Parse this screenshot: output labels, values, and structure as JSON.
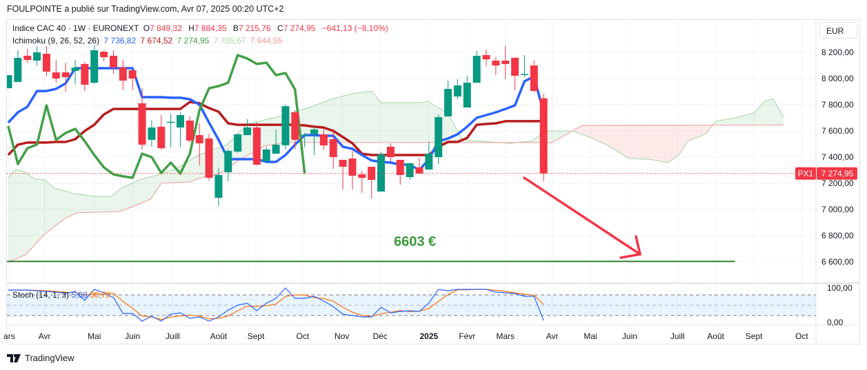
{
  "publisher": "FOULPOINTE a publié sur TradingView.com, Avr 07, 2025 00:20 UTC+2",
  "legend": {
    "symbol": "Indice CAC 40 · 1W · EURONEXT",
    "o_label": "O",
    "o": "7 849,32",
    "h_label": "H",
    "h": "7 884,35",
    "b_label": "B",
    "b": "7 215,76",
    "c_label": "C",
    "c": "7 274,95",
    "change": "−641,13 (−8,10%)",
    "ichimoku": "Ichimoku (9, 26, 52, 26)",
    "tenkan": "7 736,82",
    "kijun": "7 674,52",
    "chikou": "7 274,95",
    "span_a": "7 705,67",
    "span_b": "7 644,55"
  },
  "stoch_legend": {
    "name": "Stoch (14, 1, 3)",
    "k": "5,68",
    "d": "50,70"
  },
  "currency": "EUR",
  "price_badge": {
    "label": "PX1",
    "value": "7 274,95"
  },
  "annotation": {
    "target_text": "6603 €"
  },
  "logo": "TradingView",
  "colors": {
    "up": "#089981",
    "down": "#f23645",
    "tenkan": "#2962ff",
    "kijun": "#b71c1c",
    "chikou": "#43a047",
    "span_a": "#a5d6a7",
    "span_b": "#ef9a9a",
    "target": "#2e7d32",
    "stoch_k": "#2962ff",
    "stoch_d": "#ff6d00"
  },
  "chart_data": {
    "type": "candlestick",
    "title": "Indice CAC 40 · 1W · EURONEXT",
    "ylim": [
      6540,
      8290
    ],
    "price_ticks": [
      {
        "v": 8200,
        "label": "8 200,00"
      },
      {
        "v": 8000,
        "label": "8 000,00"
      },
      {
        "v": 7800,
        "label": "7 800,00"
      },
      {
        "v": 7600,
        "label": "7 600,00"
      },
      {
        "v": 7400,
        "label": "7 400,00"
      },
      {
        "v": 7200,
        "label": "7 200,00"
      },
      {
        "v": 7000,
        "label": "7 000,00"
      },
      {
        "v": 6800,
        "label": "6 800,00"
      },
      {
        "v": 6600,
        "label": "6 600,00"
      }
    ],
    "time_ticks": [
      {
        "i": 0.1,
        "label": "ars"
      },
      {
        "i": 3.8,
        "label": "Avr"
      },
      {
        "i": 9,
        "label": "Mai"
      },
      {
        "i": 13,
        "label": "Juin"
      },
      {
        "i": 17.2,
        "label": "Juill"
      },
      {
        "i": 22,
        "label": "Août"
      },
      {
        "i": 25.9,
        "label": "Sept"
      },
      {
        "i": 30.8,
        "label": "Oct"
      },
      {
        "i": 34.9,
        "label": "Nov"
      },
      {
        "i": 38.9,
        "label": "Déc"
      },
      {
        "i": 44,
        "label": "2025",
        "bold": true
      },
      {
        "i": 48,
        "label": "Févr"
      },
      {
        "i": 52,
        "label": "Mars"
      },
      {
        "i": 56.9,
        "label": "Avr"
      },
      {
        "i": 60.9,
        "label": "Mai"
      },
      {
        "i": 65,
        "label": "Juin"
      },
      {
        "i": 70,
        "label": "Juill"
      },
      {
        "i": 74,
        "label": "Août"
      },
      {
        "i": 78,
        "label": "Sept"
      },
      {
        "i": 83,
        "label": "Oct"
      }
    ],
    "ohlc": [
      [
        7926,
        8026,
        7926,
        8026
      ],
      [
        7974,
        8216,
        7974,
        8158
      ],
      [
        8174,
        8226,
        8121,
        8142
      ],
      [
        8137,
        8247,
        8100,
        8200
      ],
      [
        8189,
        8247,
        8016,
        8053
      ],
      [
        8047,
        8142,
        7968,
        8000
      ],
      [
        8047,
        8121,
        7900,
        8011
      ],
      [
        8058,
        8142,
        7953,
        8084
      ],
      [
        8111,
        8126,
        7905,
        7953
      ],
      [
        7968,
        8253,
        7958,
        8216
      ],
      [
        8205,
        8216,
        8132,
        8163
      ],
      [
        8174,
        8216,
        8037,
        8084
      ],
      [
        8084,
        8142,
        7911,
        7984
      ],
      [
        8063,
        8063,
        7911,
        8000
      ],
      [
        7811,
        7926,
        7458,
        7495
      ],
      [
        7532,
        7679,
        7479,
        7626
      ],
      [
        7632,
        7721,
        7458,
        7468
      ],
      [
        7668,
        7732,
        7474,
        7670
      ],
      [
        7626,
        7742,
        7479,
        7721
      ],
      [
        7679,
        7711,
        7511,
        7526
      ],
      [
        7568,
        7658,
        7337,
        7505
      ],
      [
        7542,
        7579,
        7221,
        7242
      ],
      [
        7089,
        7316,
        7026,
        7263
      ],
      [
        7284,
        7458,
        7216,
        7447
      ],
      [
        7442,
        7579,
        7432,
        7574
      ],
      [
        7568,
        7689,
        7568,
        7626
      ],
      [
        7626,
        7668,
        7337,
        7342
      ],
      [
        7368,
        7479,
        7368,
        7458
      ],
      [
        7426,
        7611,
        7426,
        7495
      ],
      [
        7490,
        7800,
        7458,
        7789
      ],
      [
        7742,
        7758,
        7458,
        7532
      ],
      [
        7568,
        7584,
        7474,
        7570
      ],
      [
        7574,
        7637,
        7416,
        7611
      ],
      [
        7574,
        7616,
        7453,
        7489
      ],
      [
        7537,
        7616,
        7311,
        7400
      ],
      [
        7379,
        7379,
        7153,
        7326
      ],
      [
        7389,
        7447,
        7153,
        7258
      ],
      [
        7268,
        7295,
        7126,
        7242
      ],
      [
        7326,
        7326,
        7084,
        7226
      ],
      [
        7137,
        7442,
        7137,
        7421
      ],
      [
        7479,
        7505,
        7363,
        7400
      ],
      [
        7379,
        7379,
        7189,
        7263
      ],
      [
        7247,
        7358,
        7226,
        7353
      ],
      [
        7321,
        7395,
        7274,
        7274
      ],
      [
        7305,
        7516,
        7305,
        7426
      ],
      [
        7400,
        7726,
        7347,
        7705
      ],
      [
        7711,
        7984,
        7711,
        7921
      ],
      [
        7863,
        7995,
        7842,
        7947
      ],
      [
        7779,
        8021,
        7779,
        7968
      ],
      [
        7968,
        8211,
        7968,
        8174
      ],
      [
        8179,
        8221,
        8095,
        8147
      ],
      [
        8137,
        8163,
        8026,
        8100
      ],
      [
        8137,
        8253,
        7995,
        8111
      ],
      [
        8158,
        8163,
        7911,
        8021
      ],
      [
        8032,
        8179,
        8011,
        8035
      ],
      [
        8100,
        8137,
        7895,
        7905
      ],
      [
        7849.32,
        7884.35,
        7215.76,
        7274.95
      ]
    ],
    "tenkan": [
      7663,
      7742,
      7784,
      7905,
      7905,
      7921,
      7963,
      8079,
      8079,
      8079,
      8079,
      8079,
      8079,
      8079,
      7858,
      7858,
      7858,
      7853,
      7853,
      7842,
      7800,
      7663,
      7532,
      7384,
      7384,
      7384,
      7384,
      7363,
      7363,
      7416,
      7495,
      7568,
      7568,
      7563,
      7563,
      7479,
      7463,
      7416,
      7374,
      7363,
      7358,
      7342,
      7342,
      7300,
      7384,
      7521,
      7542,
      7574,
      7632,
      7700,
      7721,
      7742,
      7768,
      7795,
      7979,
      8016,
      7736.82
    ],
    "kijun": [
      7416,
      7495,
      7511,
      7511,
      7511,
      7516,
      7516,
      7537,
      7600,
      7647,
      7726,
      7768,
      7768,
      7768,
      7768,
      7768,
      7768,
      7768,
      7768,
      7821,
      7811,
      7774,
      7747,
      7658,
      7647,
      7647,
      7647,
      7647,
      7647,
      7647,
      7647,
      7642,
      7632,
      7626,
      7600,
      7553,
      7505,
      7426,
      7416,
      7416,
      7416,
      7416,
      7416,
      7416,
      7416,
      7479,
      7516,
      7516,
      7547,
      7647,
      7653,
      7658,
      7674,
      7674,
      7674,
      7674,
      7674.52
    ],
    "chikou": [
      7637,
      7347,
      7468,
      7495,
      7795,
      7532,
      7584,
      7616,
      7521,
      7416,
      7321,
      7268,
      7253,
      7242,
      7426,
      7400,
      7279,
      7358,
      7274,
      7426,
      7758,
      7926,
      7942,
      7968,
      8179,
      8153,
      8111,
      8121,
      8026,
      8042,
      7916,
      7274.95
    ],
    "span_a": [
      [
        0,
        7247
      ],
      [
        0.8,
        7305
      ],
      [
        1.8,
        7284
      ],
      [
        2.8,
        7232
      ],
      [
        3.8,
        7226
      ],
      [
        4.8,
        7163
      ],
      [
        6.9,
        7121
      ],
      [
        8.9,
        7100
      ],
      [
        10.8,
        7100
      ],
      [
        11.8,
        7163
      ],
      [
        13.9,
        7232
      ],
      [
        15.9,
        7268
      ],
      [
        17.9,
        7326
      ],
      [
        19.9,
        7416
      ],
      [
        22.9,
        7495
      ],
      [
        25,
        7653
      ],
      [
        28,
        7705
      ],
      [
        31,
        7768
      ],
      [
        34,
        7847
      ],
      [
        36,
        7884
      ],
      [
        38,
        7905
      ],
      [
        39,
        7816
      ],
      [
        43.1,
        7816
      ],
      [
        43.9,
        7826
      ],
      [
        46,
        7732
      ],
      [
        47.5,
        7532
      ],
      [
        52.5,
        7505
      ],
      [
        54.9,
        7526
      ],
      [
        56.1,
        7600
      ],
      [
        59,
        7600
      ],
      [
        61,
        7547
      ],
      [
        63,
        7479
      ],
      [
        64.9,
        7389
      ],
      [
        67,
        7384
      ],
      [
        69,
        7358
      ],
      [
        70.1,
        7411
      ],
      [
        71.1,
        7521
      ],
      [
        73,
        7579
      ],
      [
        74,
        7674
      ],
      [
        76,
        7700
      ],
      [
        78,
        7737
      ],
      [
        79.1,
        7826
      ],
      [
        80,
        7847
      ],
      [
        81.1,
        7705.67
      ]
    ],
    "span_b": [
      [
        0,
        6600
      ],
      [
        1.8,
        6653
      ],
      [
        3.8,
        6811
      ],
      [
        5.8,
        6926
      ],
      [
        7.1,
        6974
      ],
      [
        11.6,
        6984
      ],
      [
        13,
        7021
      ],
      [
        14.9,
        7079
      ],
      [
        16,
        7200
      ],
      [
        19.1,
        7211
      ],
      [
        19.9,
        7237
      ],
      [
        22,
        7268
      ],
      [
        24.4,
        7389
      ],
      [
        26.8,
        7484
      ],
      [
        28.9,
        7511
      ],
      [
        56.9,
        7511
      ],
      [
        60,
        7642
      ],
      [
        81.1,
        7644.55
      ]
    ],
    "last_price": 7274.95,
    "target_level": 6603,
    "target_end_index": 76,
    "stoch": {
      "ylim": [
        0,
        100
      ],
      "bands": [
        80,
        50,
        20
      ],
      "ticks": [
        {
          "v": 100,
          "label": "100,00"
        },
        {
          "v": 0,
          "label": "0,00"
        }
      ],
      "k": [
        94,
        94,
        94,
        92,
        90,
        88,
        84,
        90,
        64,
        96,
        86,
        72,
        26,
        26,
        4,
        18,
        4,
        24,
        28,
        12,
        16,
        4,
        16,
        36,
        50,
        56,
        34,
        56,
        70,
        100,
        70,
        70,
        76,
        62,
        46,
        24,
        20,
        16,
        16,
        44,
        28,
        32,
        34,
        32,
        56,
        96,
        92,
        96,
        96,
        96,
        96,
        88,
        86,
        84,
        76,
        76,
        5.68
      ]
    }
  }
}
